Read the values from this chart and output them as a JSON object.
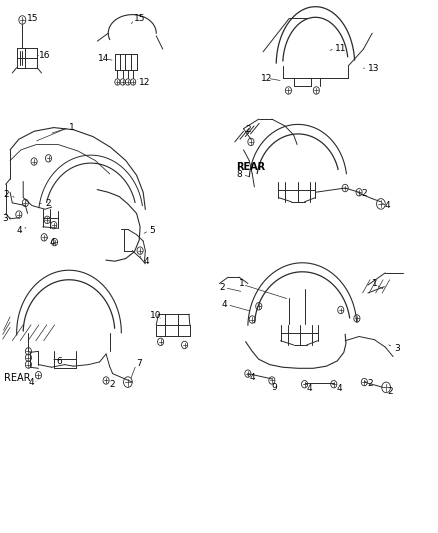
{
  "bg_color": "#f5f5f5",
  "line_color": "#2a2a2a",
  "figsize": [
    4.39,
    5.33
  ],
  "dpi": 100,
  "lw_main": 0.8,
  "lw_thin": 0.5,
  "bolt_r": 0.007,
  "font_size": 6.5
}
